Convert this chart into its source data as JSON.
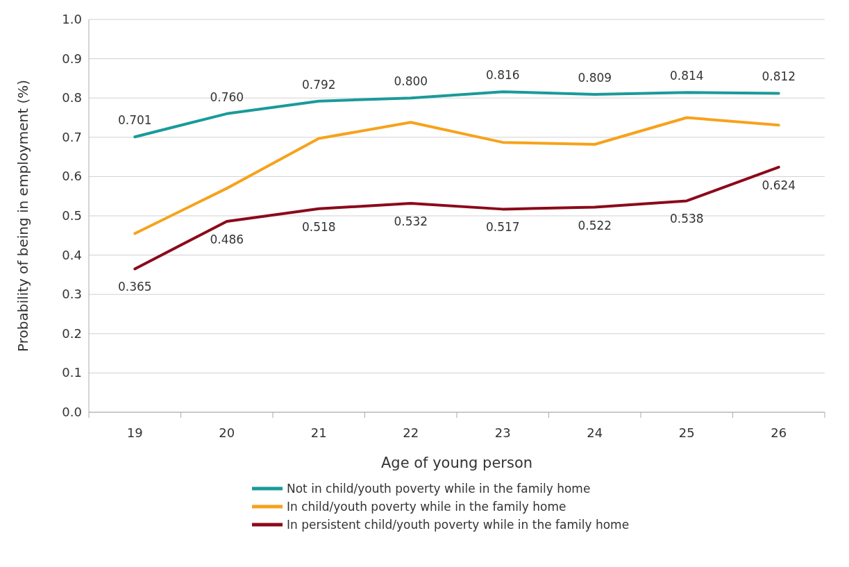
{
  "chart_data": {
    "type": "line",
    "xlabel": "Age of young person",
    "ylabel": "Probability of being in employment (%)",
    "categories": [
      "19",
      "20",
      "21",
      "22",
      "23",
      "24",
      "25",
      "26"
    ],
    "ylim": [
      0,
      1
    ],
    "yticks": [
      "0.0",
      "0.1",
      "0.2",
      "0.3",
      "0.4",
      "0.5",
      "0.6",
      "0.7",
      "0.8",
      "0.9",
      "1.0"
    ],
    "grid": "y",
    "legend": "bottom",
    "marker": "none",
    "line_style": "solid",
    "series": [
      {
        "name": "Not in child/youth poverty while in the family home",
        "color": "#1a9a9a",
        "values": [
          0.701,
          0.76,
          0.792,
          0.8,
          0.816,
          0.809,
          0.814,
          0.812
        ],
        "value_labels": [
          "0.701",
          "0.760",
          "0.792",
          "0.800",
          "0.816",
          "0.809",
          "0.814",
          "0.812"
        ]
      },
      {
        "name": "In child/youth poverty while in the family home",
        "color": "#f7a21b",
        "values": [
          0.455,
          0.57,
          0.697,
          0.738,
          0.687,
          0.682,
          0.75,
          0.731
        ]
      },
      {
        "name": "In persistent child/youth poverty while in the family home",
        "color": "#8b0a1a",
        "values": [
          0.365,
          0.486,
          0.518,
          0.532,
          0.517,
          0.522,
          0.538,
          0.624
        ],
        "value_labels": [
          "0.365",
          "0.486",
          "0.518",
          "0.532",
          "0.517",
          "0.522",
          "0.538",
          "0.624"
        ]
      }
    ]
  }
}
